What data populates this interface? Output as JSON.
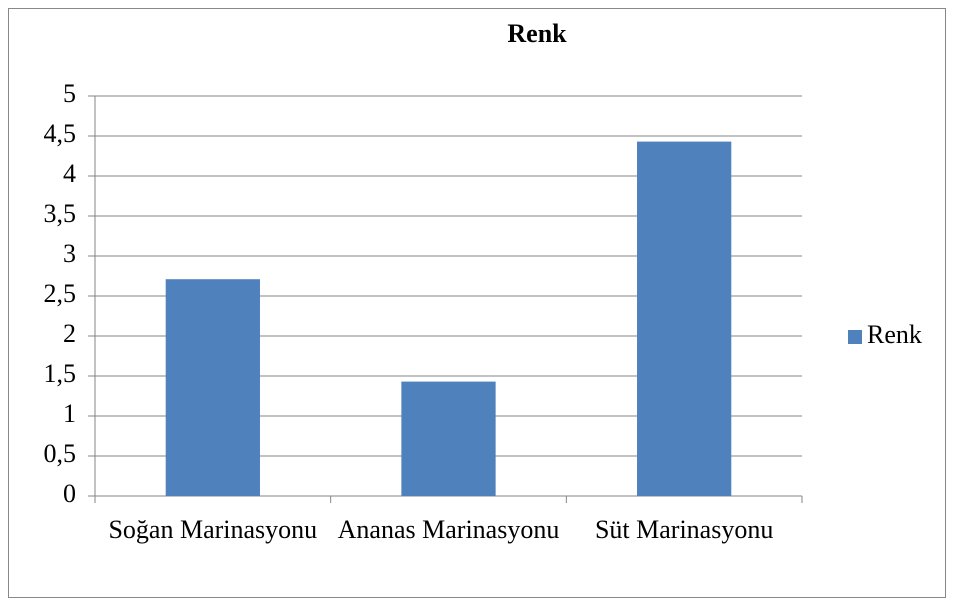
{
  "chart_data": {
    "type": "bar",
    "title": "Renk",
    "categories": [
      "Soğan Marinasyonu",
      "Ananas Marinasyonu",
      "Süt Marinasyonu"
    ],
    "series": [
      {
        "name": "Renk",
        "color": "#4f81bd",
        "values": [
          2.71,
          1.43,
          4.43
        ]
      }
    ],
    "ylim": [
      0,
      5
    ],
    "yticks": [
      0,
      {
        "value": 0.5,
        "label": "0,5"
      },
      1,
      {
        "value": 1.5,
        "label": "1,5"
      },
      2,
      {
        "value": 2.5,
        "label": "2,5"
      },
      3,
      {
        "value": 3.5,
        "label": "3,5"
      },
      4,
      {
        "value": 4.5,
        "label": "4,5"
      },
      5
    ],
    "grid": true,
    "legend": "right"
  }
}
